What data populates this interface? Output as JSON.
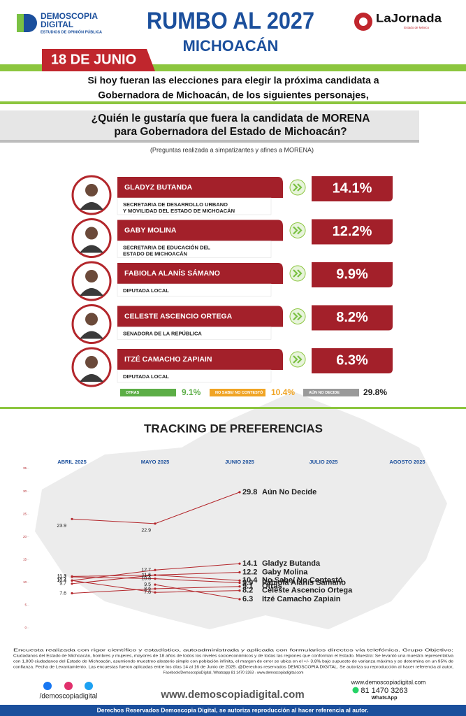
{
  "header": {
    "brand": "DEMOSCOPIA",
    "brand2": "DIGITAL",
    "brand_tagline": "ESTUDIOS DE OPINIÓN PÚBLICA",
    "title": "RUMBO AL 2027",
    "subtitle": "MICHOACÁN",
    "partner": "LaJornada",
    "partner_tagline": "Estado de México",
    "date": "18 DE JUNIO"
  },
  "intro": [
    "Si hoy fueran las elecciones para elegir la próxima candidata a",
    "Gobernadora de Michoacán, de los siguientes personajes,"
  ],
  "question": [
    "¿Quién le gustaría que fuera la candidata de MORENA",
    "para Gobernadora del Estado de Michoacán?"
  ],
  "note": "(Preguntas realizada a simpatizantes y afines a MORENA)",
  "candidates": [
    {
      "name": "GLADYZ BUTANDA",
      "role": [
        "SECRETARIA DE DESARROLLO URBANO",
        "Y MOVILIDAD DEL ESTADO DE MICHOACÁN"
      ],
      "percent": "14.1%"
    },
    {
      "name": "GABY MOLINA",
      "role": [
        "SECRETARIA DE EDUCACIÓN DEL",
        "ESTADO DE MICHOACÁN"
      ],
      "percent": "12.2%"
    },
    {
      "name": "FABIOLA ALANÍS SÁMANO",
      "role": [
        "DIPUTADA LOCAL"
      ],
      "percent": "9.9%"
    },
    {
      "name": "CELESTE ASCENCIO ORTEGA",
      "role": [
        "SENADORA DE LA REPÚBLICA"
      ],
      "percent": "8.2%"
    },
    {
      "name": "ITZÉ CAMACHO ZAPIAIN",
      "role": [
        "DIPUTADA LOCAL"
      ],
      "percent": "6.3%"
    }
  ],
  "others": [
    {
      "name": "OTRAS",
      "percent": "9.1%",
      "color": "#5cae46"
    },
    {
      "name": "NO SABE/ NO CONTESTÓ",
      "percent": "10.4%",
      "color": "#f0a424"
    },
    {
      "name": "AÚN NO DECIDE",
      "percent": "29.8%",
      "color": "#9a9a9a"
    }
  ],
  "chart_data": {
    "type": "line",
    "title": "TRACKING DE PREFERENCIAS",
    "categories": [
      "ABRIL 2025",
      "MAYO 2025",
      "JUNIO 2025",
      "JULIO 2025",
      "AGOSTO 2025"
    ],
    "ylim": [
      0,
      35
    ],
    "yticks": [
      0,
      5,
      10,
      15,
      20,
      25,
      30,
      35
    ],
    "grid": false,
    "series": [
      {
        "name": "Aún No Decide",
        "color": "#b3262b",
        "values": [
          23.9,
          22.9,
          29.8,
          null,
          null
        ]
      },
      {
        "name": "Gladyz Butanda",
        "color": "#b3262b",
        "values": [
          10.4,
          12.7,
          14.1,
          null,
          null
        ]
      },
      {
        "name": "Gaby Molina",
        "color": "#b3262b",
        "values": [
          11.3,
          11.6,
          12.2,
          null,
          null
        ]
      },
      {
        "name": "No Sabe/ No Contestó",
        "color": "#b3262b",
        "values": [
          9.7,
          11.6,
          10.4,
          null,
          null
        ]
      },
      {
        "name": "Fabiola Alanís Sámano",
        "color": "#b3262b",
        "values": [
          11.2,
          10.8,
          9.9,
          null,
          null
        ]
      },
      {
        "name": "Otras",
        "color": "#b3262b",
        "values": [
          7.6,
          8.6,
          9.1,
          null,
          null
        ]
      },
      {
        "name": "Celeste Ascencio Ortega",
        "color": "#b3262b",
        "values": [
          10.4,
          7.8,
          8.2,
          null,
          null
        ]
      },
      {
        "name": "Itzé Camacho Zapiain",
        "color": "#b3262b",
        "values": [
          null,
          9.5,
          6.3,
          null,
          null
        ]
      }
    ]
  },
  "footer": {
    "methodology": [
      "Encuesta realizada con rigor científico y estadístico, autoadministrada y aplicada con formularios directos vía telefónica. Grupo Objetivo:",
      "Ciudadanos del Estado de Michoacán, hombres y mujeres, mayores de 18 años de todos los niveles socioeconómicos y de todas las regiones que conforman el Estado. Muestra: Se levantó una muestra representativa",
      "con 1,000 ciudadanos del Estado de Michoacán, asumiendo muestreo aleatorio simple con población infinita, el margen de error se ubica en el +/- 3.8% bajo supuesto de varianza máxima y se determina en un 95% de",
      "confianza. Fecha de Levantamiento. Las encuestas fueron aplicadas entre los días 14 al 16 de Junio de 2025. @Derechos reservados DEMOSCOPIA DIGITAL. Se autoriza su reproducción al hacer referencia al autor,",
      "Facebook/DemoscopiaDigital, Whatsapp 81 1470 3263 - www.demoscopiadigital.com"
    ],
    "social": "/demoscopiadigital",
    "website": "www.demoscopiadigital.com",
    "website_small": "www.demoscopiadigital.com",
    "phone": "81 1470 3263",
    "phone_label": "WhatsApp",
    "rights": "Derechos Reservados Demoscopia Digital, se autoriza reproducción al hacer referencia al autor."
  }
}
